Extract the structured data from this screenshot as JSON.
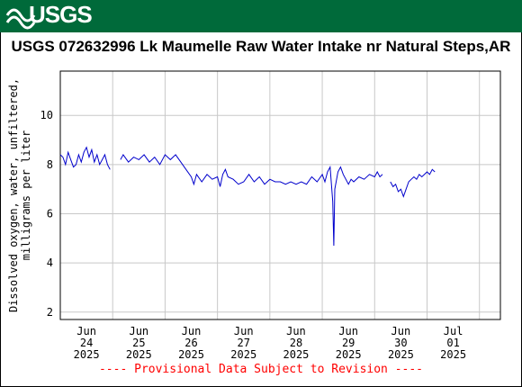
{
  "header": {
    "logo_text": "USGS",
    "banner_color": "#006a3a"
  },
  "title": "USGS 072632996 Lk Maumelle Raw Water Intake nr Natural Steps,AR",
  "footer": "---- Provisional Data Subject to Revision ----",
  "chart_data": {
    "type": "line",
    "title": "USGS 072632996 Lk Maumelle Raw Water Intake nr Natural Steps,AR",
    "ylabel": "Dissolved oxygen, water, unfiltered, milligrams per liter",
    "xlabel": "",
    "ylim": [
      1.7,
      11.8
    ],
    "yticks": [
      2,
      4,
      6,
      8,
      10
    ],
    "xlim": [
      0,
      8.4
    ],
    "xticks": [
      {
        "pos": 0.5,
        "label": [
          "Jun",
          "24",
          "2025"
        ]
      },
      {
        "pos": 1.5,
        "label": [
          "Jun",
          "25",
          "2025"
        ]
      },
      {
        "pos": 2.5,
        "label": [
          "Jun",
          "26",
          "2025"
        ]
      },
      {
        "pos": 3.5,
        "label": [
          "Jun",
          "27",
          "2025"
        ]
      },
      {
        "pos": 4.5,
        "label": [
          "Jun",
          "28",
          "2025"
        ]
      },
      {
        "pos": 5.5,
        "label": [
          "Jun",
          "29",
          "2025"
        ]
      },
      {
        "pos": 6.5,
        "label": [
          "Jun",
          "30",
          "2025"
        ]
      },
      {
        "pos": 7.5,
        "label": [
          "Jul",
          "01",
          "2025"
        ]
      }
    ],
    "grid": true,
    "line_color": "#0000cc",
    "series": [
      {
        "segments": [
          [
            [
              0.0,
              8.4
            ],
            [
              0.05,
              8.3
            ],
            [
              0.1,
              8.0
            ],
            [
              0.15,
              8.5
            ],
            [
              0.2,
              8.2
            ],
            [
              0.25,
              7.9
            ],
            [
              0.3,
              8.0
            ],
            [
              0.35,
              8.4
            ],
            [
              0.4,
              8.1
            ],
            [
              0.45,
              8.5
            ],
            [
              0.5,
              8.7
            ],
            [
              0.55,
              8.3
            ],
            [
              0.6,
              8.6
            ],
            [
              0.65,
              8.1
            ],
            [
              0.7,
              8.4
            ],
            [
              0.75,
              8.0
            ],
            [
              0.8,
              8.2
            ],
            [
              0.85,
              8.4
            ],
            [
              0.9,
              8.0
            ],
            [
              0.95,
              7.8
            ]
          ],
          [
            [
              1.15,
              8.2
            ],
            [
              1.2,
              8.4
            ],
            [
              1.3,
              8.1
            ],
            [
              1.4,
              8.3
            ],
            [
              1.5,
              8.2
            ],
            [
              1.6,
              8.4
            ],
            [
              1.7,
              8.1
            ],
            [
              1.8,
              8.3
            ],
            [
              1.9,
              8.0
            ],
            [
              2.0,
              8.4
            ],
            [
              2.1,
              8.2
            ],
            [
              2.2,
              8.4
            ],
            [
              2.3,
              8.1
            ],
            [
              2.4,
              7.8
            ],
            [
              2.5,
              7.5
            ],
            [
              2.55,
              7.2
            ],
            [
              2.6,
              7.6
            ],
            [
              2.7,
              7.3
            ],
            [
              2.8,
              7.6
            ],
            [
              2.9,
              7.4
            ],
            [
              3.0,
              7.5
            ],
            [
              3.05,
              7.1
            ],
            [
              3.1,
              7.6
            ],
            [
              3.15,
              7.8
            ],
            [
              3.2,
              7.5
            ],
            [
              3.3,
              7.4
            ],
            [
              3.4,
              7.2
            ],
            [
              3.5,
              7.3
            ],
            [
              3.6,
              7.6
            ],
            [
              3.7,
              7.3
            ],
            [
              3.8,
              7.5
            ],
            [
              3.9,
              7.2
            ],
            [
              4.0,
              7.4
            ],
            [
              4.1,
              7.3
            ],
            [
              4.2,
              7.3
            ],
            [
              4.3,
              7.2
            ],
            [
              4.4,
              7.3
            ],
            [
              4.5,
              7.2
            ],
            [
              4.6,
              7.3
            ],
            [
              4.7,
              7.2
            ],
            [
              4.8,
              7.5
            ],
            [
              4.9,
              7.3
            ],
            [
              5.0,
              7.6
            ],
            [
              5.05,
              7.3
            ],
            [
              5.1,
              7.7
            ],
            [
              5.15,
              7.9
            ],
            [
              5.2,
              6.5
            ],
            [
              5.22,
              4.7
            ],
            [
              5.24,
              7.0
            ],
            [
              5.3,
              7.7
            ],
            [
              5.35,
              7.9
            ],
            [
              5.4,
              7.6
            ],
            [
              5.5,
              7.2
            ],
            [
              5.55,
              7.4
            ],
            [
              5.6,
              7.3
            ],
            [
              5.7,
              7.5
            ],
            [
              5.8,
              7.4
            ],
            [
              5.9,
              7.6
            ],
            [
              6.0,
              7.5
            ],
            [
              6.05,
              7.7
            ],
            [
              6.1,
              7.5
            ],
            [
              6.15,
              7.6
            ]
          ],
          [
            [
              6.3,
              7.3
            ],
            [
              6.35,
              7.1
            ],
            [
              6.4,
              7.2
            ],
            [
              6.45,
              6.9
            ],
            [
              6.5,
              7.0
            ],
            [
              6.55,
              6.7
            ],
            [
              6.6,
              7.0
            ],
            [
              6.65,
              7.3
            ],
            [
              6.7,
              7.4
            ],
            [
              6.75,
              7.5
            ],
            [
              6.8,
              7.4
            ],
            [
              6.85,
              7.6
            ],
            [
              6.9,
              7.5
            ],
            [
              6.95,
              7.6
            ],
            [
              7.0,
              7.7
            ],
            [
              7.05,
              7.6
            ],
            [
              7.1,
              7.8
            ],
            [
              7.15,
              7.7
            ]
          ]
        ]
      }
    ]
  }
}
